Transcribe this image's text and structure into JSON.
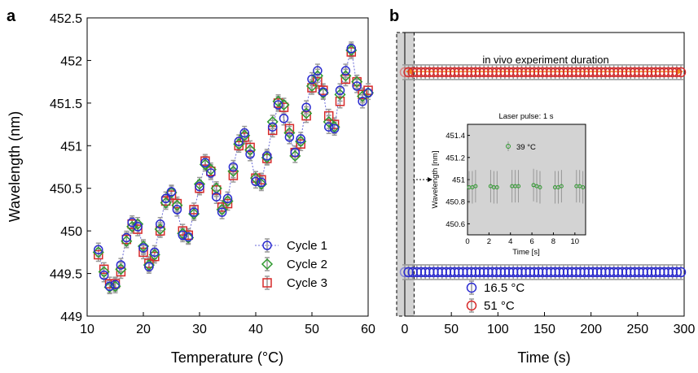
{
  "chart_data": [
    {
      "panel": "a",
      "type": "scatter",
      "xlabel": "Temperature (°C)",
      "ylabel": "Wavelength (nm)",
      "xlim": [
        10,
        60
      ],
      "ylim": [
        449,
        452.5
      ],
      "xticks": [
        "10",
        "20",
        "30",
        "40",
        "50",
        "60"
      ],
      "yticks": [
        "449",
        "449.5",
        "450",
        "450.5",
        "451",
        "451.5",
        "452",
        "452.5"
      ],
      "legend_position": "bottom-right",
      "x": [
        12,
        13,
        14,
        15,
        16,
        17,
        18,
        19,
        20,
        21,
        22,
        23,
        24,
        25,
        26,
        27,
        28,
        29,
        30,
        31,
        32,
        33,
        34,
        35,
        36,
        37,
        38,
        39,
        40,
        41,
        42,
        43,
        44,
        45,
        46,
        47,
        48,
        49,
        50,
        51,
        52,
        53,
        54,
        55,
        56,
        57,
        58,
        59,
        60
      ],
      "series": [
        {
          "name": "Cycle 1",
          "marker": "circle",
          "color": "#2b2bd0",
          "line": "dotted",
          "values": [
            449.78,
            449.48,
            449.35,
            449.37,
            449.6,
            449.92,
            450.1,
            450.05,
            449.8,
            449.58,
            449.75,
            450.08,
            450.38,
            450.46,
            450.25,
            449.95,
            449.93,
            450.22,
            450.52,
            450.8,
            450.68,
            450.4,
            450.22,
            450.38,
            450.75,
            451.05,
            451.15,
            450.9,
            450.58,
            450.57,
            450.88,
            451.22,
            451.48,
            451.32,
            451.1,
            450.92,
            451.08,
            451.45,
            451.78,
            451.88,
            451.63,
            451.22,
            451.2,
            451.65,
            451.88,
            452.14,
            451.7,
            451.52,
            451.62
          ]
        },
        {
          "name": "Cycle 2",
          "marker": "diamond",
          "color": "#2f9a2f",
          "values": [
            449.75,
            449.52,
            449.34,
            449.35,
            449.55,
            449.88,
            450.05,
            450.08,
            449.82,
            449.6,
            449.72,
            450.02,
            450.33,
            450.45,
            450.3,
            449.97,
            449.92,
            450.2,
            450.55,
            450.78,
            450.72,
            450.5,
            450.25,
            450.35,
            450.7,
            451.02,
            451.12,
            450.95,
            450.62,
            450.55,
            450.86,
            451.28,
            451.52,
            451.48,
            451.15,
            450.88,
            451.05,
            451.38,
            451.7,
            451.82,
            451.62,
            451.28,
            451.22,
            451.6,
            451.82,
            452.12,
            451.75,
            451.58,
            451.62
          ]
        },
        {
          "name": "Cycle 3",
          "marker": "square",
          "color": "#d62a2a",
          "values": [
            449.72,
            449.55,
            449.38,
            449.38,
            449.52,
            449.9,
            450.08,
            450.02,
            449.75,
            449.62,
            449.7,
            450.0,
            450.35,
            450.42,
            450.32,
            450.0,
            449.95,
            450.25,
            450.5,
            450.82,
            450.7,
            450.48,
            450.28,
            450.32,
            450.65,
            451.0,
            451.1,
            450.98,
            450.62,
            450.6,
            450.85,
            451.18,
            451.5,
            451.45,
            451.2,
            450.92,
            451.02,
            451.35,
            451.68,
            451.75,
            451.65,
            451.35,
            451.25,
            451.52,
            451.78,
            452.1,
            451.75,
            451.6,
            451.65
          ]
        }
      ]
    },
    {
      "panel": "b",
      "type": "scatter",
      "xlabel": "Time (s)",
      "xlim": [
        0,
        300
      ],
      "xticks": [
        "0",
        "50",
        "100",
        "150",
        "200",
        "250",
        "300"
      ],
      "shaded_region": [
        0,
        10
      ],
      "legend_position": "bottom-left",
      "annotation": "in vivo experiment duration",
      "series": [
        {
          "name": "16.5 °C",
          "marker": "circle",
          "color": "#2b2bd0",
          "level": 0.155
        },
        {
          "name": "51 °C",
          "marker": "circle",
          "color": "#d62a2a",
          "level": 0.86
        }
      ],
      "inset": {
        "type": "scatter",
        "title": "Laser pulse: 1 s",
        "xlabel": "Time [s]",
        "ylabel": "Wavelength [nm]",
        "xlim": [
          0,
          11
        ],
        "ylim": [
          450.5,
          451.5
        ],
        "xticks": [
          "0",
          "2",
          "4",
          "6",
          "8",
          "10"
        ],
        "yticks": [
          "450.6",
          "450.8",
          "451",
          "451.2",
          "451.4"
        ],
        "series": [
          {
            "name": "39 °C",
            "marker": "circle",
            "color": "#2f9a2f",
            "x": [
              0.15,
              0.45,
              0.75,
              2.15,
              2.45,
              2.75,
              4.15,
              4.45,
              4.75,
              6.15,
              6.45,
              6.75,
              8.15,
              8.45,
              8.75,
              10.15,
              10.45,
              10.75
            ],
            "y": [
              450.93,
              450.93,
              450.94,
              450.94,
              450.93,
              450.93,
              450.94,
              450.94,
              450.94,
              450.95,
              450.94,
              450.93,
              450.93,
              450.93,
              450.94,
              450.94,
              450.94,
              450.93
            ]
          }
        ]
      }
    }
  ]
}
